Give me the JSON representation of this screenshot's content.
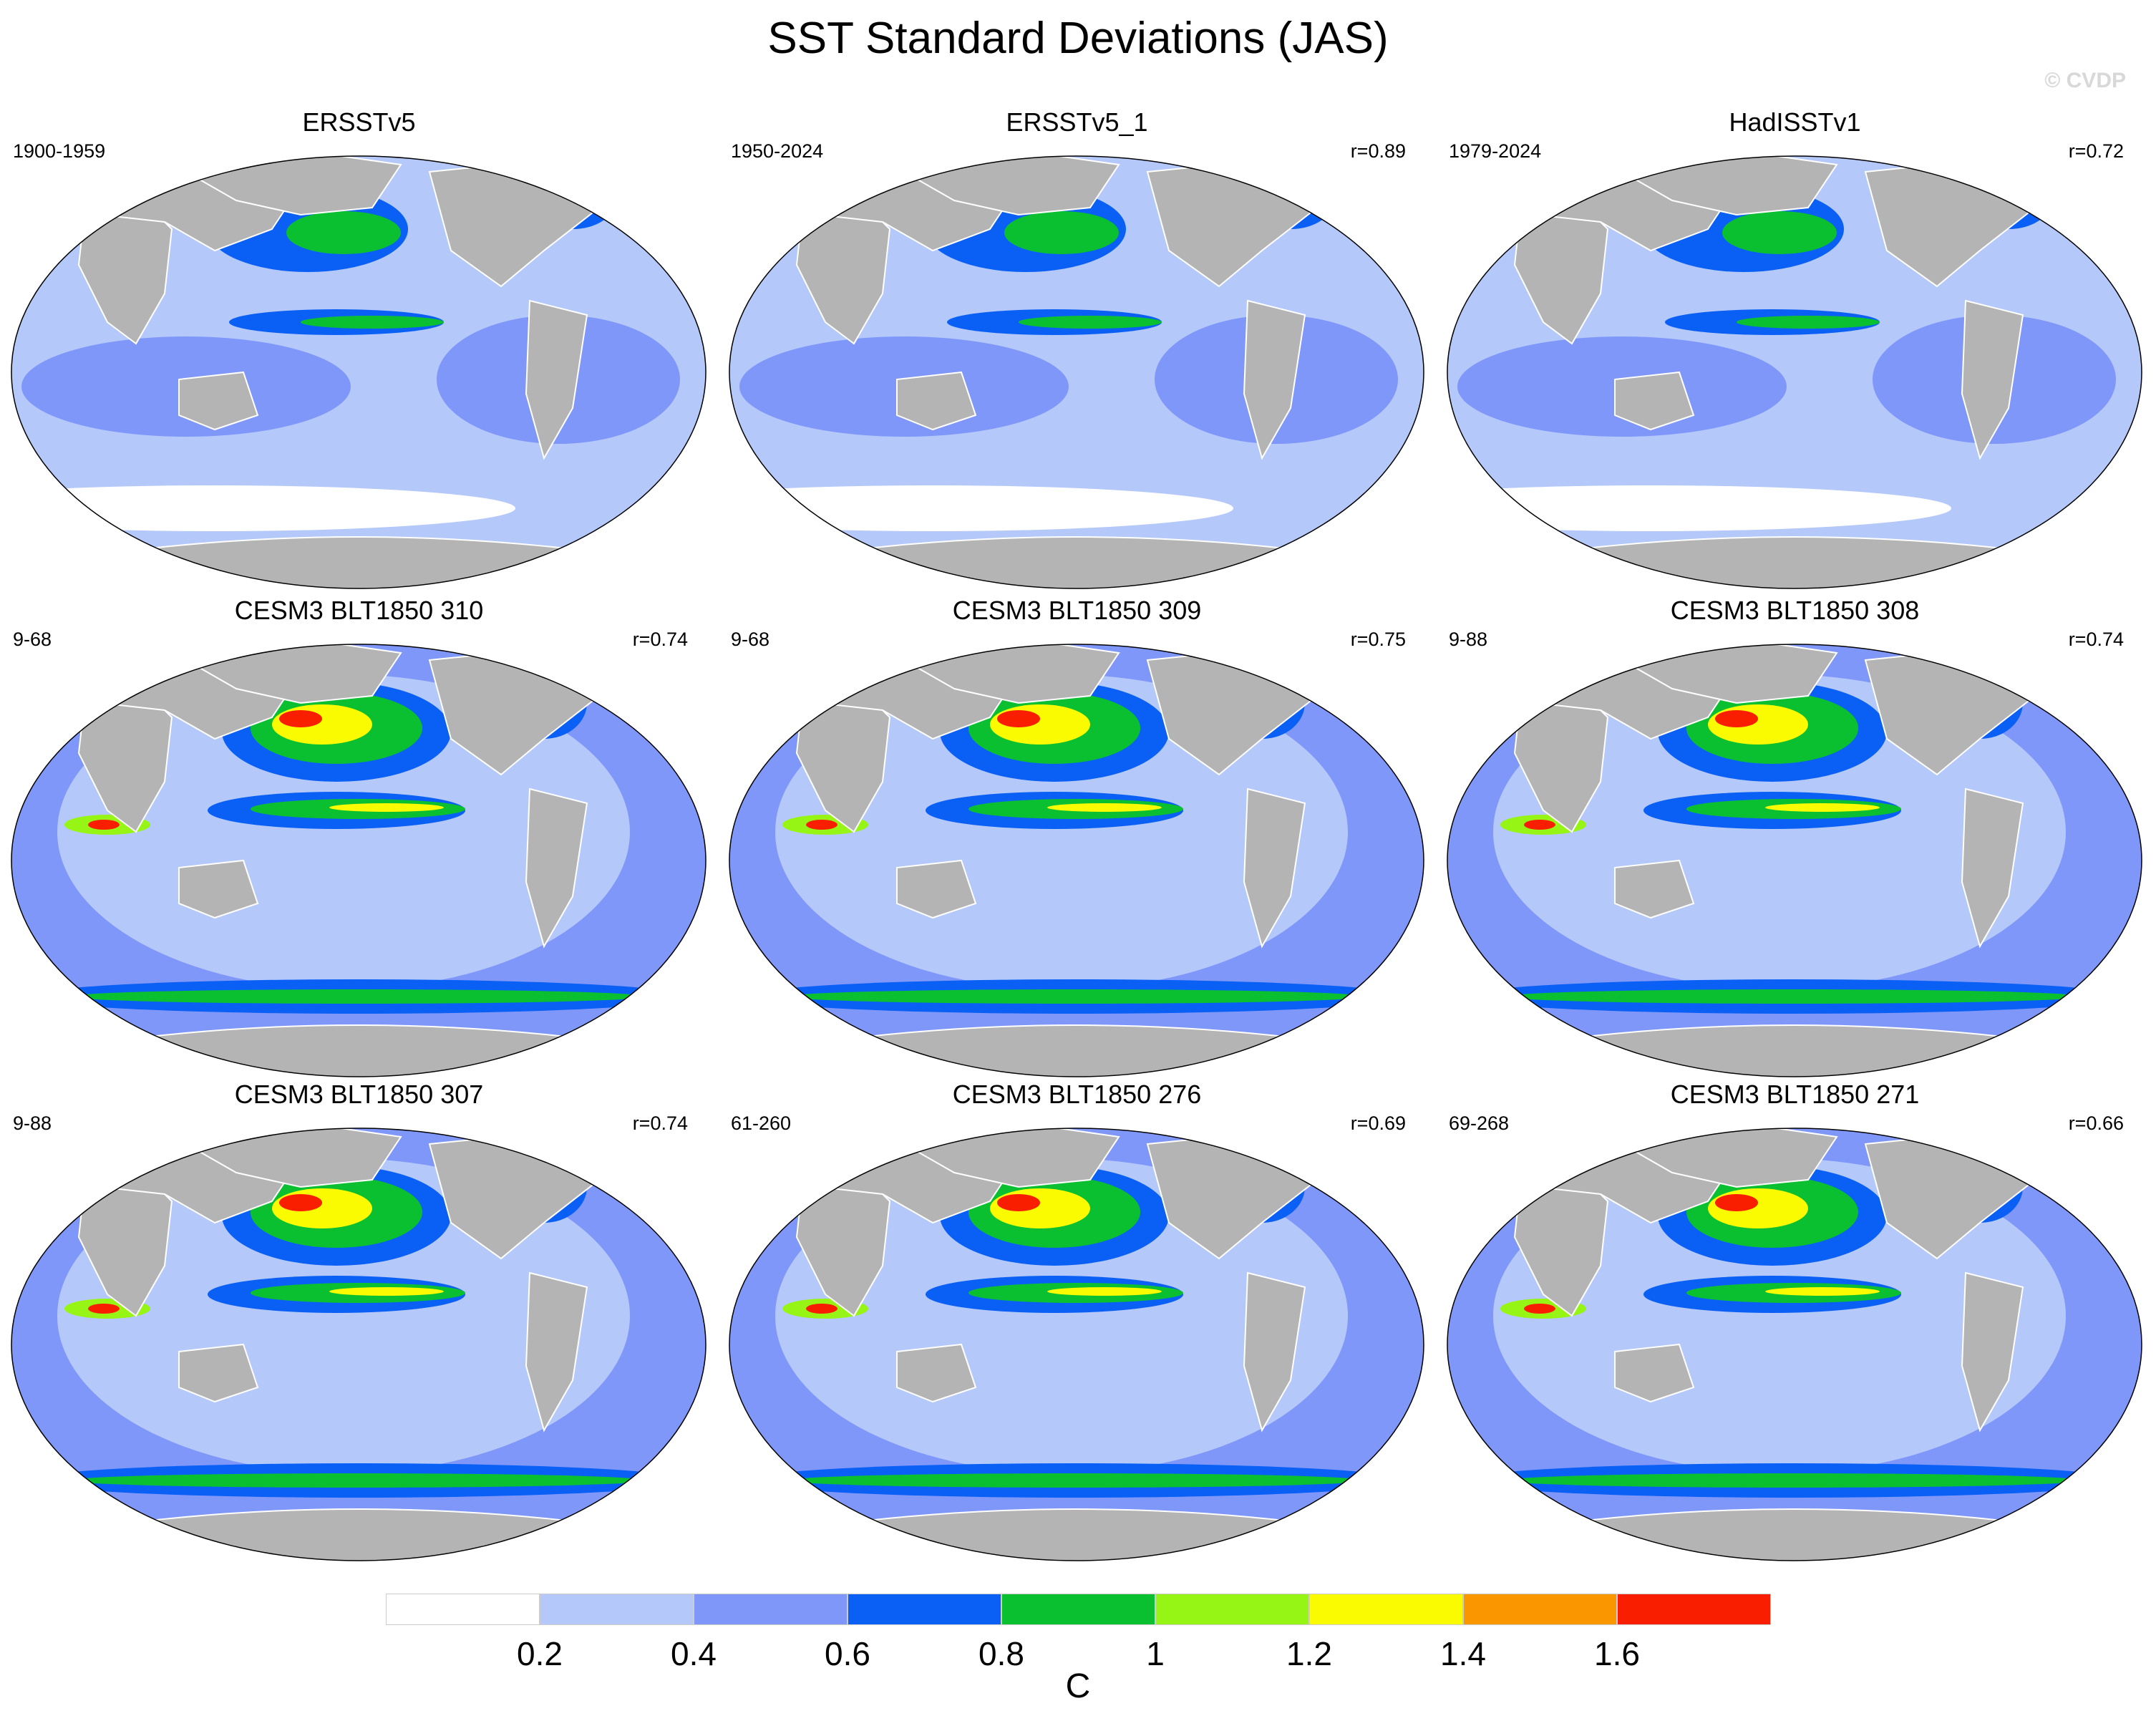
{
  "title": "SST Standard Deviations (JAS)",
  "watermark": "© CVDP",
  "panels": [
    {
      "title": "ERSSTv5",
      "period": "1900-1959",
      "corr": ""
    },
    {
      "title": "ERSSTv5_1",
      "period": "1950-2024",
      "corr": "r=0.89"
    },
    {
      "title": "HadISSTv1",
      "period": "1979-2024",
      "corr": "r=0.72"
    },
    {
      "title": "CESM3 BLT1850 310",
      "period": "9-68",
      "corr": "r=0.74"
    },
    {
      "title": "CESM3 BLT1850 309",
      "period": "9-68",
      "corr": "r=0.75"
    },
    {
      "title": "CESM3 BLT1850 308",
      "period": "9-88",
      "corr": "r=0.74"
    },
    {
      "title": "CESM3 BLT1850 307",
      "period": "9-88",
      "corr": "r=0.74"
    },
    {
      "title": "CESM3 BLT1850 276",
      "period": "61-260",
      "corr": "r=0.69"
    },
    {
      "title": "CESM3 BLT1850 271",
      "period": "69-268",
      "corr": "r=0.66"
    }
  ],
  "colorbar": {
    "units": "C",
    "labels": [
      "0.2",
      "0.4",
      "0.6",
      "0.8",
      "1",
      "1.2",
      "1.4",
      "1.6"
    ],
    "colors": [
      "#ffffff",
      "#b4c8fa",
      "#8097fa",
      "#0a60f5",
      "#0ac030",
      "#96f514",
      "#fafa00",
      "#fa9600",
      "#fa1e00"
    ]
  },
  "colors": {
    "land": "#b4b4b4",
    "coast": "#ffffff",
    "outline": "#000000"
  }
}
